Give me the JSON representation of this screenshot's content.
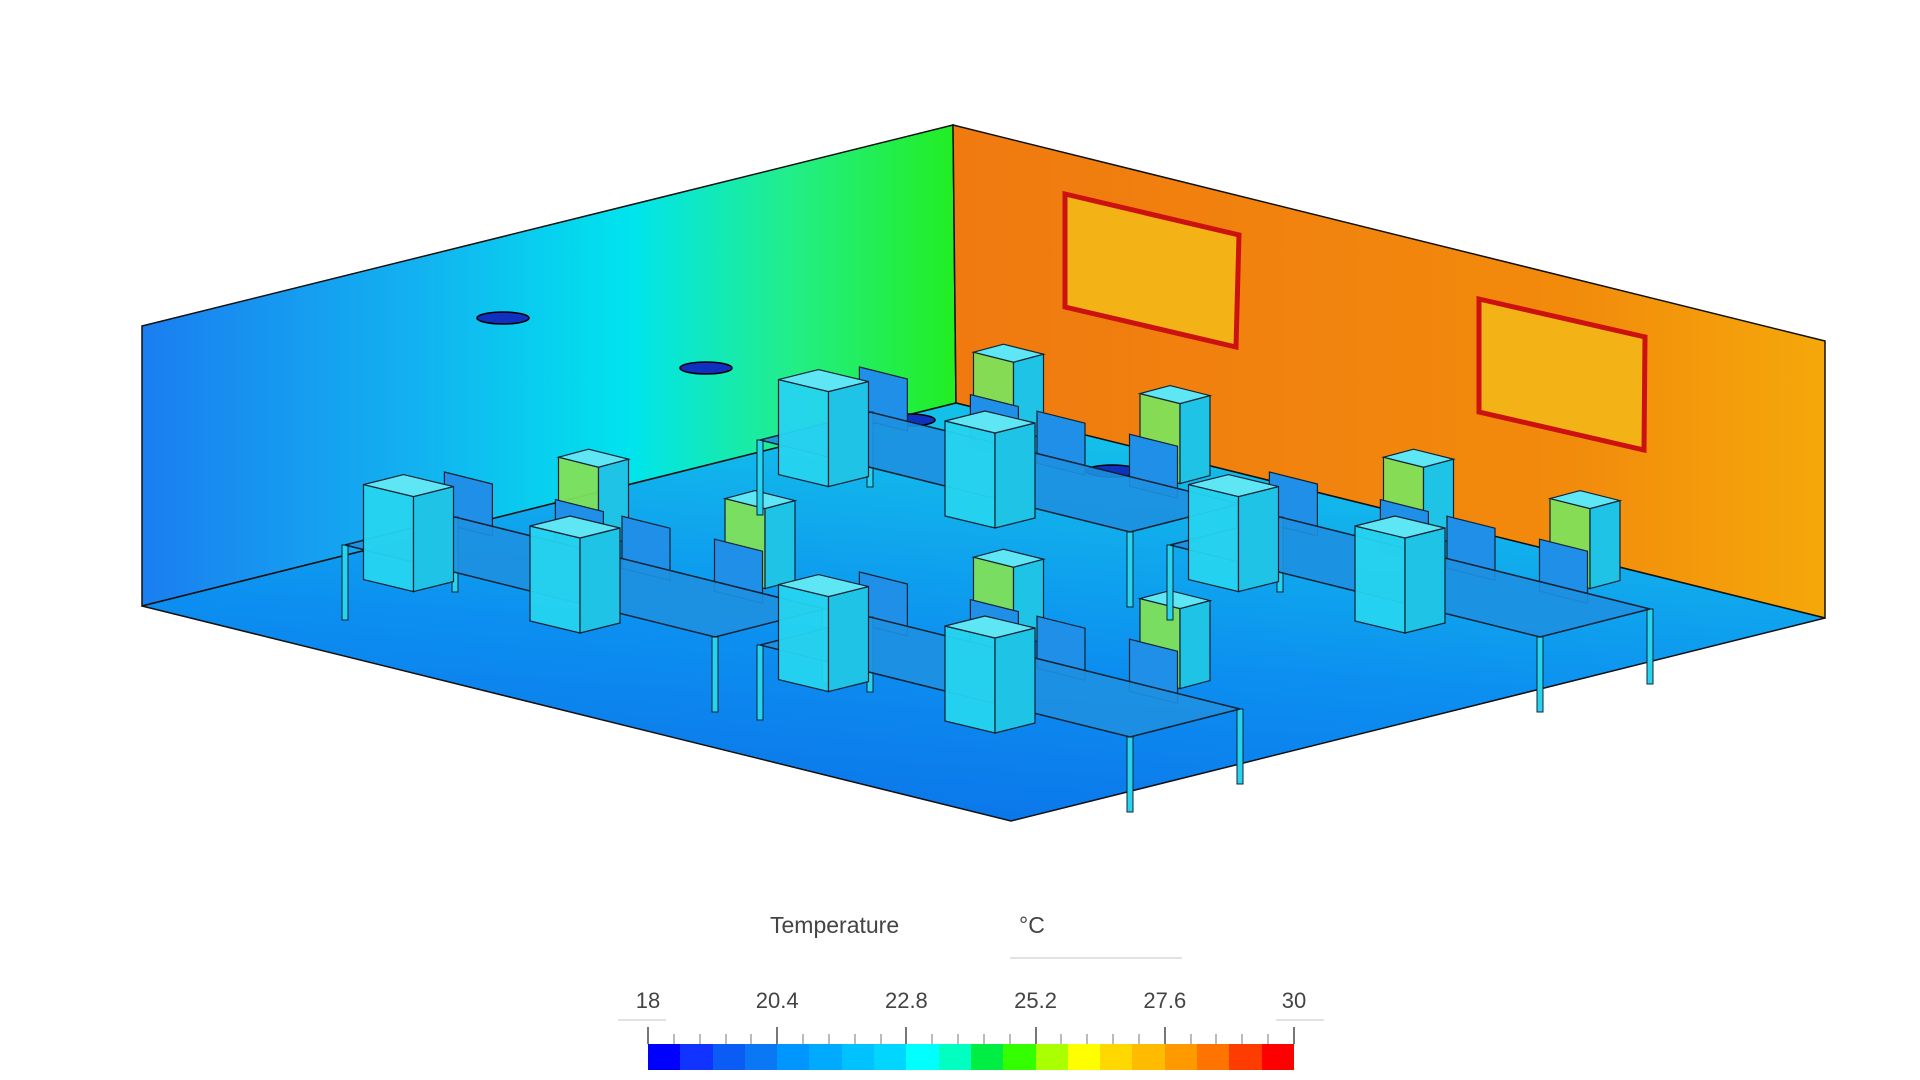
{
  "legend": {
    "title": "Temperature",
    "unit": "°C",
    "min": 18,
    "max": 30,
    "tick_labels": [
      "18",
      "20.4",
      "22.8",
      "25.2",
      "27.6",
      "30"
    ],
    "colors": [
      "#0000ff",
      "#1133ff",
      "#0a5cf5",
      "#0a78f5",
      "#0096ff",
      "#00aaff",
      "#00c2ff",
      "#00d6ff",
      "#00ffff",
      "#00ffc0",
      "#00ee44",
      "#33ff00",
      "#aaff00",
      "#ffff00",
      "#ffd800",
      "#ffbb00",
      "#ff9900",
      "#ff7300",
      "#ff3c00",
      "#ff0000"
    ]
  },
  "scene": {
    "left_wall_colors": [
      "#1a7ef0",
      "#12b4f0",
      "#00e4ee",
      "#22ee88",
      "#22ee22"
    ],
    "right_wall_colors": [
      "#f07a10",
      "#f28a0c",
      "#f5a80a"
    ],
    "floor_colors": [
      "#0b6ee8",
      "#0c8ff0",
      "#13c0ea"
    ],
    "furniture_color": "#26d4ef",
    "board_border_color": "#cc1111"
  }
}
